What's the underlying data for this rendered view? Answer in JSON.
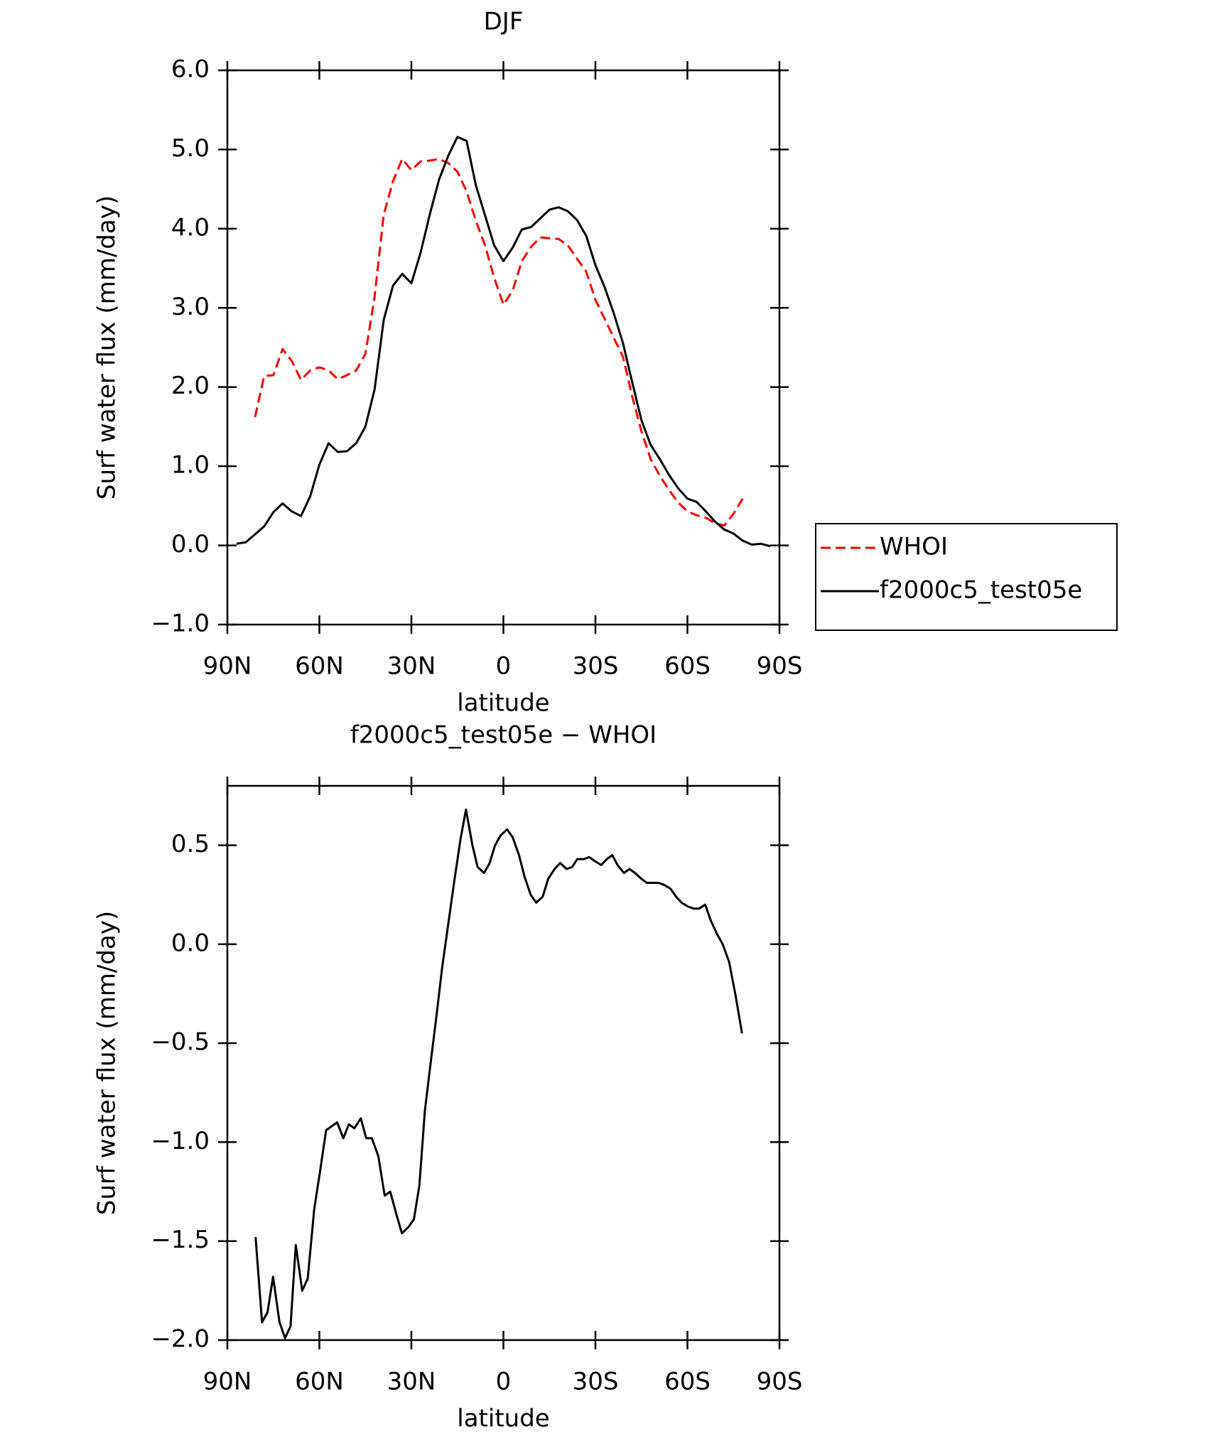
{
  "chart_data": [
    {
      "type": "line",
      "title": "DJF",
      "xlabel": "latitude",
      "ylabel": "Surf water flux (mm/day)",
      "x": [
        87,
        84,
        81,
        78,
        75,
        72,
        69,
        66,
        63,
        60,
        57,
        54,
        51,
        48,
        45,
        42,
        39,
        36,
        33,
        30,
        27,
        24,
        21,
        18,
        15,
        12,
        9,
        6,
        3,
        0,
        -3,
        -6,
        -9,
        -12,
        -15,
        -18,
        -21,
        -24,
        -27,
        -30,
        -33,
        -36,
        -39,
        -42,
        -45,
        -48,
        -51,
        -54,
        -57,
        -60,
        -63,
        -66,
        -69,
        -72,
        -75,
        -78,
        -81,
        -84,
        -87
      ],
      "series": [
        {
          "name": "WHOI",
          "color": "#ff0000",
          "dash": "dashed",
          "values": [
            null,
            null,
            1.62,
            2.14,
            2.15,
            2.48,
            2.33,
            2.09,
            2.21,
            2.25,
            2.21,
            2.1,
            2.15,
            2.21,
            2.42,
            3.14,
            4.18,
            4.6,
            4.88,
            4.74,
            4.85,
            4.86,
            4.88,
            4.83,
            4.72,
            4.47,
            4.1,
            3.79,
            3.38,
            3.04,
            3.22,
            3.59,
            3.77,
            3.89,
            3.88,
            3.87,
            3.79,
            3.62,
            3.46,
            3.1,
            2.86,
            2.62,
            2.38,
            1.88,
            1.44,
            1.09,
            0.88,
            0.7,
            0.54,
            0.43,
            0.38,
            0.35,
            0.28,
            0.25,
            0.4,
            0.59,
            null,
            null,
            null
          ]
        },
        {
          "name": "f2000c5_test05e",
          "color": "#000000",
          "dash": "solid",
          "values": [
            0.02,
            0.04,
            0.14,
            0.24,
            0.42,
            0.53,
            0.43,
            0.37,
            0.62,
            1.02,
            1.29,
            1.18,
            1.19,
            1.29,
            1.5,
            1.97,
            2.85,
            3.28,
            3.43,
            3.31,
            3.7,
            4.18,
            4.62,
            4.92,
            5.16,
            5.11,
            4.55,
            4.17,
            3.79,
            3.59,
            3.76,
            3.99,
            4.02,
            4.13,
            4.24,
            4.27,
            4.22,
            4.11,
            3.91,
            3.54,
            3.26,
            2.93,
            2.55,
            2.06,
            1.58,
            1.27,
            1.09,
            0.89,
            0.72,
            0.59,
            0.55,
            0.43,
            0.3,
            0.2,
            0.15,
            0.06,
            0.01,
            0.02,
            -0.01
          ]
        }
      ],
      "xlim": [
        90,
        -90
      ],
      "xticks": [
        {
          "value": 90,
          "label": "90N"
        },
        {
          "value": 60,
          "label": "60N"
        },
        {
          "value": 30,
          "label": "30N"
        },
        0,
        {
          "value": -30,
          "label": "30S"
        },
        {
          "value": -60,
          "label": "60S"
        },
        {
          "value": -90,
          "label": "90S"
        }
      ],
      "ylim": [
        -1.0,
        6.0
      ],
      "yticks": [
        {
          "value": -1,
          "label": "−1.0"
        },
        {
          "value": 0,
          "label": "0.0"
        },
        {
          "value": 1,
          "label": "1.0"
        },
        {
          "value": 2,
          "label": "2.0"
        },
        {
          "value": 3,
          "label": "3.0"
        },
        {
          "value": 4,
          "label": "4.0"
        },
        {
          "value": 5,
          "label": "5.0"
        },
        {
          "value": 6,
          "label": "6.0"
        }
      ],
      "legend": "outside right"
    },
    {
      "type": "line",
      "title": "f2000c5_test05e − WHOI",
      "xlabel": "latitude",
      "ylabel": "Surf water flux (mm/day)",
      "color": "#000000",
      "x": [
        80.8,
        78.7,
        76.9,
        75.1,
        73.0,
        71.2,
        69.4,
        67.7,
        65.6,
        63.8,
        61.7,
        59.9,
        57.8,
        56.0,
        54.2,
        52.2,
        50.4,
        48.6,
        46.5,
        44.7,
        42.9,
        40.8,
        38.7,
        36.9,
        34.8,
        33.1,
        31.0,
        29.2,
        27.4,
        25.6,
        23.5,
        21.8,
        20.0,
        17.9,
        16.1,
        14.0,
        12.2,
        10.1,
        8.4,
        6.3,
        4.5,
        2.7,
        0.9,
        -1.2,
        -3.0,
        -5.1,
        -6.9,
        -8.9,
        -10.7,
        -12.8,
        -14.6,
        -16.7,
        -18.5,
        -20.6,
        -22.4,
        -24.1,
        -26.2,
        -28.0,
        -29.8,
        -31.9,
        -33.7,
        -35.5,
        -37.2,
        -39.3,
        -41.1,
        -42.9,
        -45.0,
        -46.8,
        -48.6,
        -50.6,
        -52.4,
        -54.5,
        -56.3,
        -58.1,
        -60.2,
        -62.0,
        -63.8,
        -65.8,
        -67.6,
        -69.7,
        -71.5,
        -73.6,
        -75.7,
        -77.8
      ],
      "values": [
        -1.48,
        -1.91,
        -1.86,
        -1.68,
        -1.91,
        -1.99,
        -1.93,
        -1.52,
        -1.75,
        -1.69,
        -1.34,
        -1.16,
        -0.94,
        -0.92,
        -0.9,
        -0.98,
        -0.91,
        -0.93,
        -0.88,
        -0.98,
        -0.98,
        -1.07,
        -1.27,
        -1.25,
        -1.37,
        -1.46,
        -1.43,
        -1.39,
        -1.22,
        -0.84,
        -0.57,
        -0.36,
        -0.12,
        0.11,
        0.31,
        0.53,
        0.68,
        0.5,
        0.39,
        0.36,
        0.41,
        0.5,
        0.55,
        0.58,
        0.54,
        0.45,
        0.34,
        0.25,
        0.21,
        0.24,
        0.33,
        0.38,
        0.41,
        0.38,
        0.39,
        0.43,
        0.43,
        0.44,
        0.42,
        0.4,
        0.43,
        0.45,
        0.4,
        0.36,
        0.38,
        0.36,
        0.33,
        0.31,
        0.31,
        0.31,
        0.3,
        0.28,
        0.24,
        0.21,
        0.19,
        0.18,
        0.18,
        0.2,
        0.12,
        0.05,
        0.0,
        -0.09,
        -0.26,
        -0.45
      ],
      "xlim": [
        90,
        -90
      ],
      "xticks": [
        {
          "value": 90,
          "label": "90N"
        },
        {
          "value": 60,
          "label": "60N"
        },
        {
          "value": 30,
          "label": "30N"
        },
        0,
        {
          "value": -30,
          "label": "30S"
        },
        {
          "value": -60,
          "label": "60S"
        },
        {
          "value": -90,
          "label": "90S"
        }
      ],
      "ylim": [
        -2.0,
        0.8
      ],
      "yticks": [
        {
          "value": -2,
          "label": "−2.0"
        },
        {
          "value": -1.5,
          "label": "−1.5"
        },
        {
          "value": -1,
          "label": "−1.0"
        },
        {
          "value": -0.5,
          "label": "−0.5"
        },
        {
          "value": 0,
          "label": "0.0"
        },
        0.5
      ]
    }
  ]
}
